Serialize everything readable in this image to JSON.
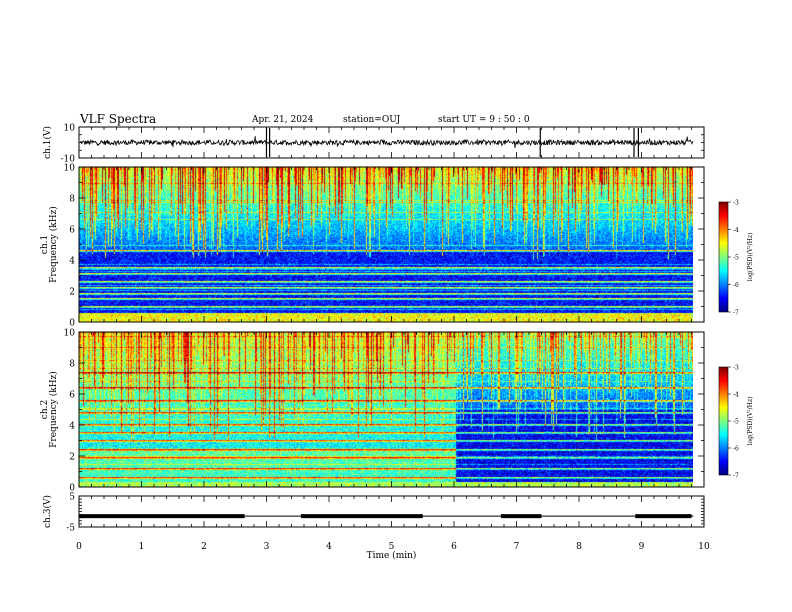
{
  "header": {
    "title": "VLF Spectra",
    "date": "Apr. 21, 2024",
    "station": "station=OUJ",
    "start_ut": "start UT =  9 : 50 : 0"
  },
  "colorbar_label": "log(PSD)(V²/Hz)",
  "colorbar_ticks": [
    "-3",
    "-4",
    "-5",
    "-6",
    "-7"
  ],
  "colormap": [
    "#00007f",
    "#0000ff",
    "#007fff",
    "#00ffff",
    "#7fff7f",
    "#ffff00",
    "#ff7f00",
    "#ff0000",
    "#7f0000"
  ],
  "chart_data": [
    {
      "type": "line",
      "ylabel": "ch.1(V)",
      "ylim": [
        -10,
        10
      ],
      "yticks": [
        "10",
        "-10"
      ],
      "xlim": [
        0,
        10
      ],
      "baseline": 0,
      "spikes_min": [
        3.0,
        3.05,
        7.38,
        8.88,
        8.95
      ]
    },
    {
      "type": "heatmap",
      "ylabel": "Frequency (kHz)",
      "channel_label": "ch.1",
      "ylim": [
        0,
        10
      ],
      "yticks": [
        "0",
        "2",
        "4",
        "6",
        "8",
        "10"
      ],
      "xlim": [
        0,
        10
      ],
      "data_end_min": 9.83,
      "zlim": [
        -7,
        -3
      ],
      "emission_band_khz": [
        5,
        10
      ],
      "noise_lines_khz": [
        0.5,
        1.0,
        1.5,
        1.8,
        2.2,
        2.6,
        3.1,
        3.5,
        4.6
      ]
    },
    {
      "type": "heatmap",
      "ylabel": "Frequency (kHz)",
      "channel_label": "ch.2",
      "ylim": [
        0,
        10
      ],
      "yticks": [
        "0",
        "2",
        "4",
        "6",
        "8",
        "10"
      ],
      "xlim": [
        0,
        10
      ],
      "data_end_min": 9.83,
      "zlim": [
        -7,
        -3
      ],
      "level_change_min": 6.03,
      "noise_lines_khz": [
        0.6,
        1.2,
        1.9,
        2.4,
        3.0,
        3.5,
        4.0,
        4.8,
        5.6,
        6.4,
        7.4
      ]
    },
    {
      "type": "line",
      "ylabel": "ch.3(V)",
      "ylim": [
        -5,
        5
      ],
      "yticks": [
        "5",
        "-5"
      ],
      "xlim": [
        0,
        10
      ],
      "xlabel": "Time (min)",
      "xticks": [
        "0",
        "1",
        "2",
        "3",
        "4",
        "5",
        "6",
        "7",
        "8",
        "9",
        "10"
      ],
      "thick_segments_min": [
        [
          0,
          2.65
        ],
        [
          3.55,
          5.5
        ],
        [
          6.75,
          7.4
        ],
        [
          8.9,
          9.8
        ]
      ],
      "level": -1.5
    }
  ]
}
